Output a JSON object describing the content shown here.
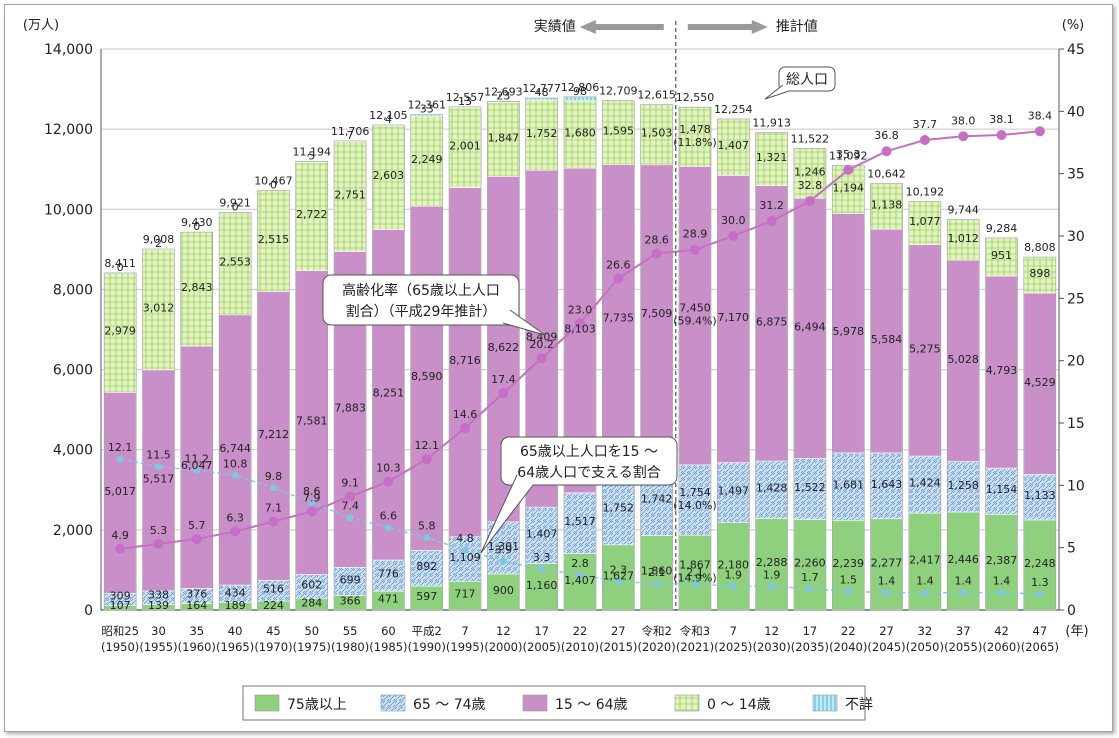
{
  "chart_data": {
    "type": "bar",
    "y_unit_left": "(万人)",
    "y_unit_right": "(%)",
    "x_unit": "(年)",
    "ylim_left": [
      0,
      14000
    ],
    "ylim_right": [
      0,
      45
    ],
    "left_ticks": [
      "0",
      "2,000",
      "4,000",
      "6,000",
      "8,000",
      "10,000",
      "12,000",
      "14,000"
    ],
    "right_ticks": [
      "0",
      "5",
      "10",
      "15",
      "20",
      "25",
      "30",
      "35",
      "40",
      "45"
    ],
    "categories_top": [
      "昭和25",
      "30",
      "35",
      "40",
      "45",
      "50",
      "55",
      "60",
      "平成2",
      "7",
      "12",
      "17",
      "22",
      "27",
      "令和2",
      "令和3",
      "7",
      "12",
      "17",
      "22",
      "27",
      "32",
      "37",
      "42",
      "47"
    ],
    "categories_bottom": [
      "(1950)",
      "(1955)",
      "(1960)",
      "(1965)",
      "(1970)",
      "(1975)",
      "(1980)",
      "(1985)",
      "(1990)",
      "(1995)",
      "(2000)",
      "(2005)",
      "(2010)",
      "(2015)",
      "(2020)",
      "(2021)",
      "(2025)",
      "(2030)",
      "(2035)",
      "(2040)",
      "(2045)",
      "(2050)",
      "(2055)",
      "(2060)",
      "(2065)"
    ],
    "series": [
      {
        "name": "75歳以上",
        "color": "#8fd07f",
        "values": [
          107,
          139,
          164,
          189,
          224,
          284,
          366,
          471,
          597,
          717,
          900,
          1160,
          1407,
          1627,
          1860,
          1867,
          2180,
          2288,
          2260,
          2239,
          2277,
          2417,
          2446,
          2387,
          2248
        ]
      },
      {
        "name": "65～74歳",
        "color": "#a8c8ec",
        "values": [
          309,
          338,
          376,
          434,
          516,
          602,
          699,
          776,
          892,
          1109,
          1301,
          1407,
          1517,
          1752,
          1742,
          1754,
          1497,
          1428,
          1522,
          1681,
          1643,
          1424,
          1258,
          1154,
          1133
        ]
      },
      {
        "name": "15～64歳",
        "color": "#c98fc8",
        "values": [
          5017,
          5517,
          6047,
          6744,
          7212,
          7581,
          7883,
          8251,
          8590,
          8716,
          8622,
          8409,
          8103,
          7735,
          7509,
          7450,
          7170,
          6875,
          6494,
          5978,
          5584,
          5275,
          5028,
          4793,
          4529
        ]
      },
      {
        "name": "0～14歳",
        "color": "#d5ecac",
        "values": [
          2979,
          3012,
          2843,
          2553,
          2515,
          2722,
          2751,
          2603,
          2249,
          2001,
          1847,
          1752,
          1680,
          1595,
          1503,
          1478,
          1407,
          1321,
          1246,
          1194,
          1138,
          1077,
          1012,
          951,
          898
        ]
      },
      {
        "name": "不詳",
        "color": "#8dd5ee",
        "values": [
          0,
          2,
          0,
          0,
          0,
          5,
          7,
          4,
          33,
          13,
          23,
          48,
          98,
          0,
          0,
          0,
          0,
          0,
          0,
          0,
          0,
          0,
          0,
          0,
          0
        ]
      }
    ],
    "value_labels": {
      "75歳以上": [
        "107",
        "139",
        "164",
        "189",
        "224",
        "284",
        "366",
        "471",
        "597",
        "717",
        "900",
        "1,160",
        "1,407",
        "1,627",
        "1,860",
        "1,867\n(14.9%)",
        "2,180",
        "2,288",
        "2,260",
        "2,239",
        "2,277",
        "2,417",
        "2,446",
        "2,387",
        "2,248"
      ],
      "65～74歳": [
        "309",
        "338",
        "376",
        "434",
        "516",
        "602",
        "699",
        "776",
        "892",
        "1,109",
        "1,301",
        "1,407",
        "1,517",
        "1,752",
        "1,742",
        "1,754\n(14.0%)",
        "1,497",
        "1,428",
        "1,522",
        "1,681",
        "1,643",
        "1,424",
        "1,258",
        "1,154",
        "1,133"
      ],
      "15～64歳": [
        "5,017",
        "5,517",
        "6,047",
        "6,744",
        "7,212",
        "7,581",
        "7,883",
        "8,251",
        "8,590",
        "8,716",
        "8,622",
        "8,409",
        "8,103",
        "7,735",
        "7,509",
        "7,450\n(59.4%)",
        "7,170",
        "6,875",
        "6,494",
        "5,978",
        "5,584",
        "5,275",
        "5,028",
        "4,793",
        "4,529"
      ],
      "0～14歳": [
        "2,979",
        "3,012",
        "2,843",
        "2,553",
        "2,515",
        "2,722",
        "2,751",
        "2,603",
        "2,249",
        "2,001",
        "1,847",
        "1,752",
        "1,680",
        "1,595",
        "1,503",
        "1,478\n(11.8%)",
        "1,407",
        "1,321",
        "1,246",
        "1,194",
        "1,138",
        "1,077",
        "1,012",
        "951",
        "898"
      ],
      "不詳": [
        "0",
        "2",
        "0",
        "0",
        "0",
        "5",
        "7",
        "4",
        "33",
        "13",
        "23",
        "48",
        "98",
        "",
        "",
        "",
        "",
        "",
        "",
        "",
        "",
        "",
        "",
        "",
        ""
      ]
    },
    "total_labels": [
      "8,411",
      "9,008",
      "9,430",
      "9,921",
      "10,467",
      "11,194",
      "11,706",
      "12,105",
      "12,361",
      "12,557",
      "12,693",
      "12,777",
      "12,806",
      "12,709",
      "12,615",
      "12,550",
      "12,254",
      "11,913",
      "11,522",
      "11,092",
      "10,642",
      "10,192",
      "9,744",
      "9,284",
      "8,808"
    ],
    "lines": [
      {
        "name": "高齢化率（65歳以上人口割合）（平成29年推計）",
        "color": "#c66fc6",
        "values": [
          4.9,
          5.3,
          5.7,
          6.3,
          7.1,
          7.9,
          9.1,
          10.3,
          12.1,
          14.6,
          17.4,
          20.2,
          23.0,
          26.6,
          28.6,
          28.9,
          30.0,
          31.2,
          32.8,
          35.3,
          36.8,
          37.7,
          38.0,
          38.1,
          38.4
        ],
        "labels": [
          "4.9",
          "5.3",
          "5.7",
          "6.3",
          "7.1",
          "7.9",
          "9.1",
          "10.3",
          "12.1",
          "14.6",
          "17.4",
          "20.2",
          "23.0",
          "26.6",
          "28.6",
          "28.9",
          "30.0",
          "31.2",
          "32.8",
          "35.3",
          "36.8",
          "37.7",
          "38.0",
          "38.1",
          "38.4"
        ]
      },
      {
        "name": "65歳以上人口を15～64歳人口で支える割合",
        "color": "#7fc6e0",
        "values": [
          12.1,
          11.5,
          11.2,
          10.8,
          9.8,
          8.6,
          7.4,
          6.6,
          5.8,
          4.8,
          3.9,
          3.3,
          2.8,
          2.3,
          2.1,
          2.1,
          1.9,
          1.9,
          1.7,
          1.5,
          1.4,
          1.4,
          1.4,
          1.4,
          1.3
        ],
        "labels": [
          "12.1",
          "11.5",
          "11.2",
          "10.8",
          "9.8",
          "8.6",
          "7.4",
          "6.6",
          "5.8",
          "4.8",
          "3.9",
          "3.3",
          "2.8",
          "2.3",
          "2.1",
          "2.1",
          "1.9",
          "1.9",
          "1.7",
          "1.5",
          "1.4",
          "1.4",
          "1.4",
          "1.4",
          "1.3"
        ]
      }
    ],
    "annotations": {
      "actual": "実績値",
      "projection": "推計値",
      "total": "総人口",
      "aging_callout_line1": "高齢化率（65歳以上人口",
      "aging_callout_line2": "割合）（平成29年推計）",
      "support_callout_line1": "65歳以上人口を15 ～",
      "support_callout_line2": "64歳人口で支える割合"
    },
    "legend": [
      "75歳以上",
      "65 ～ 74歳",
      "15 ～ 64歳",
      "0 ～ 14歳",
      "不詳"
    ],
    "legend_position": "bottom"
  }
}
